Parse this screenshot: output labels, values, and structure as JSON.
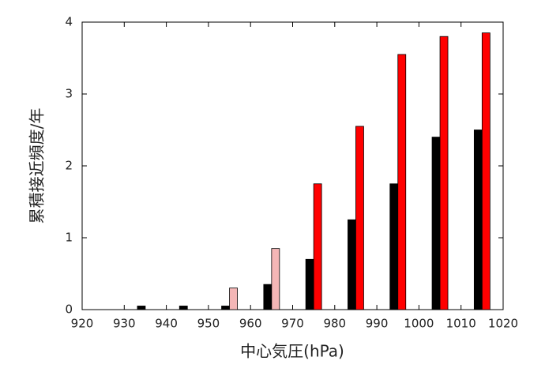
{
  "chart_data": {
    "type": "bar",
    "x_label": "中心気圧(hPa)",
    "y_label": "累積接近頻度/年",
    "x": [
      935,
      945,
      955,
      965,
      975,
      985,
      995,
      1005,
      1015
    ],
    "series": [
      {
        "color": "#000000",
        "values": [
          0.05,
          0.05,
          0.05,
          0.35,
          0.7,
          1.25,
          1.75,
          2.4,
          2.5
        ]
      },
      {
        "color": "#ff0000",
        "colors": [
          null,
          null,
          "#f4b6b6",
          "#f4b6b6",
          "#ff0000",
          "#ff0000",
          "#ff0000",
          "#ff0000",
          "#ff0000"
        ],
        "values": [
          null,
          null,
          0.3,
          0.85,
          1.75,
          2.55,
          3.55,
          3.8,
          3.85
        ]
      }
    ],
    "xlim": [
      920,
      1020
    ],
    "xticks": [
      920,
      930,
      940,
      950,
      960,
      970,
      980,
      990,
      1000,
      1010,
      1020
    ],
    "ylim": [
      0,
      4
    ],
    "yticks": [
      0,
      1,
      2,
      3,
      4
    ]
  }
}
